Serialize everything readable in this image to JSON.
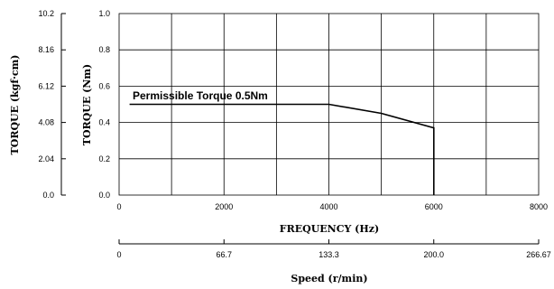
{
  "chart_data": {
    "type": "line",
    "title": "",
    "xlabel": "FREQUENCY (Hz)",
    "ylabel": "TORQUE (Nm)",
    "ylabel_secondary": "TORQUE (kgf·cm)",
    "xlim": [
      0,
      8000
    ],
    "ylim": [
      0,
      1.0
    ],
    "x_ticks": [
      "0",
      "2000",
      "4000",
      "6000",
      "8000"
    ],
    "y_ticks": [
      "0.0",
      "0.2",
      "0.4",
      "0.6",
      "0.8",
      "1.0"
    ],
    "y2_ticks": [
      "0.0",
      "2.04",
      "4.08",
      "6.12",
      "8.16",
      "10.2"
    ],
    "grid": true,
    "series": [
      {
        "x": [
          200,
          4000,
          5000,
          6000,
          6000
        ],
        "y": [
          0.5,
          0.5,
          0.45,
          0.37,
          0.0
        ]
      }
    ],
    "annotation": "Permissible Torque 0.5Nm",
    "secondary_x": {
      "label": "Speed (r/min)",
      "ticks": [
        "0",
        "66.7",
        "133.3",
        "200.0",
        "266.67"
      ]
    }
  }
}
